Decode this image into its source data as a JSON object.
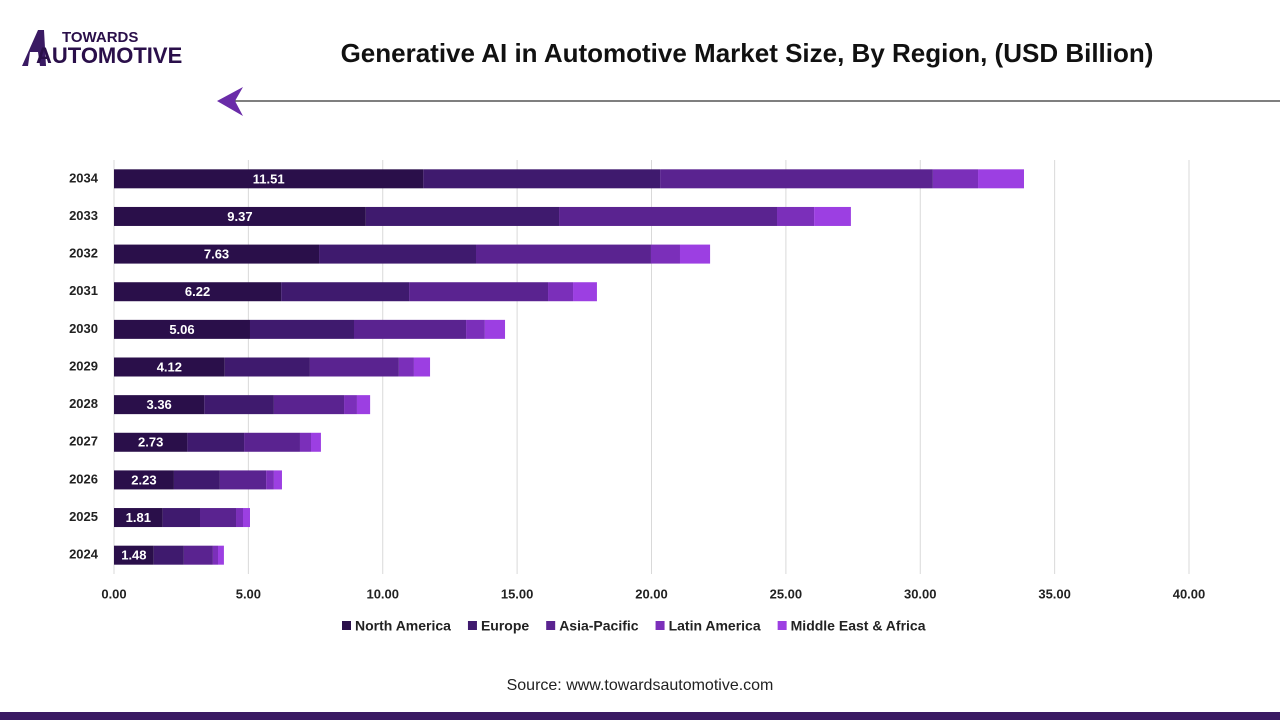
{
  "logo": {
    "line1": "TOWARDS",
    "line2": "AUTOMOTIVE"
  },
  "chart_data": {
    "type": "stacked-barh",
    "title": "Generative AI in Automotive Market Size, By Region, (USD Billion)",
    "categories": [
      "2034",
      "2033",
      "2032",
      "2031",
      "2030",
      "2029",
      "2028",
      "2027",
      "2026",
      "2025",
      "2024"
    ],
    "series": [
      {
        "name": "North America",
        "color": "#2a0f4a",
        "values": [
          11.51,
          9.37,
          7.63,
          6.22,
          5.06,
          4.12,
          3.36,
          2.73,
          2.23,
          1.81,
          1.48
        ]
      },
      {
        "name": "Europe",
        "color": "#3f1a6e",
        "values": [
          8.81,
          7.19,
          5.84,
          4.76,
          3.87,
          3.17,
          2.59,
          2.11,
          1.71,
          1.39,
          1.12
        ]
      },
      {
        "name": "Asia-Pacific",
        "color": "#5a2390",
        "values": [
          10.15,
          8.11,
          6.51,
          5.17,
          4.17,
          3.31,
          2.61,
          2.08,
          1.72,
          1.34,
          1.08
        ]
      },
      {
        "name": "Latin America",
        "color": "#7b2fba",
        "values": [
          1.68,
          1.38,
          1.08,
          0.93,
          0.7,
          0.56,
          0.48,
          0.41,
          0.29,
          0.26,
          0.19
        ]
      },
      {
        "name": "Middle East & Africa",
        "color": "#9c3fe2",
        "values": [
          1.71,
          1.37,
          1.12,
          0.89,
          0.75,
          0.6,
          0.49,
          0.37,
          0.3,
          0.26,
          0.22
        ]
      }
    ],
    "xlim": [
      0,
      40
    ],
    "xticks": [
      {
        "value": 0,
        "label": "0.00"
      },
      {
        "value": 5,
        "label": "5.00"
      },
      {
        "value": 10,
        "label": "10.00"
      },
      {
        "value": 15,
        "label": "15.00"
      },
      {
        "value": 20,
        "label": "20.00"
      },
      {
        "value": 25,
        "label": "25.00"
      },
      {
        "value": 30,
        "label": "30.00"
      },
      {
        "value": 35,
        "label": "35.00"
      },
      {
        "value": 40,
        "label": "40.00"
      }
    ],
    "grid": true,
    "source": "Source: www.towardsautomotive.com"
  }
}
